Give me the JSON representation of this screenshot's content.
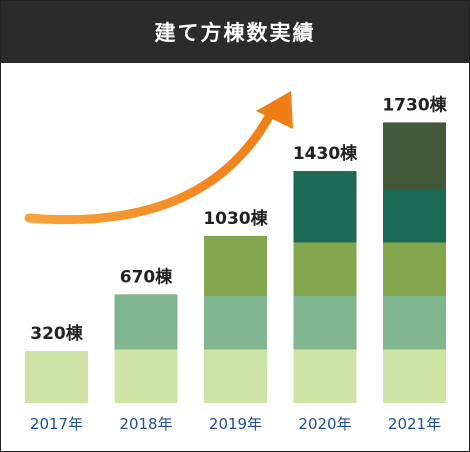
{
  "title": "建て方棟数実績",
  "chart_data": {
    "type": "bar",
    "stacked": true,
    "categories": [
      "2017年",
      "2018年",
      "2019年",
      "2020年",
      "2021年"
    ],
    "totals": [
      320,
      670,
      1030,
      1430,
      1730
    ],
    "value_labels": [
      "320棟",
      "670棟",
      "1030棟",
      "1430棟",
      "1730棟"
    ],
    "segment_colors": [
      "#cde4a4",
      "#7fb690",
      "#84a64e",
      "#1c6a53",
      "#41583b"
    ],
    "ylim": [
      0,
      1800
    ],
    "grid": false,
    "legend": "none",
    "annotation": "upward orange trend arrow"
  }
}
